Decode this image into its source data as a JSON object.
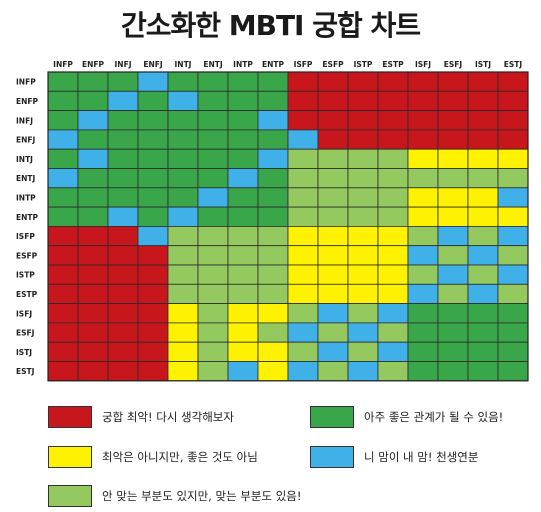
{
  "title": "간소화한 MBTI 궁합 차트",
  "chart_data": {
    "type": "heatmap",
    "x_categories": [
      "INFP",
      "ENFP",
      "INFJ",
      "ENFJ",
      "INTJ",
      "ENTJ",
      "INTP",
      "ENTP",
      "ISFP",
      "ESFP",
      "ISTP",
      "ESTP",
      "ISFJ",
      "ESFJ",
      "ISTJ",
      "ESTJ"
    ],
    "y_categories": [
      "INFP",
      "ENFP",
      "INFJ",
      "ENFJ",
      "INTJ",
      "ENTJ",
      "INTP",
      "ENTP",
      "ISFP",
      "ESFP",
      "ISTP",
      "ESTP",
      "ISFJ",
      "ESFJ",
      "ISTJ",
      "ESTJ"
    ],
    "matrix": [
      [
        "G",
        "G",
        "G",
        "B",
        "G",
        "G",
        "G",
        "G",
        "R",
        "R",
        "R",
        "R",
        "R",
        "R",
        "R",
        "R"
      ],
      [
        "G",
        "G",
        "B",
        "G",
        "B",
        "G",
        "G",
        "G",
        "R",
        "R",
        "R",
        "R",
        "R",
        "R",
        "R",
        "R"
      ],
      [
        "G",
        "B",
        "G",
        "G",
        "G",
        "G",
        "G",
        "B",
        "R",
        "R",
        "R",
        "R",
        "R",
        "R",
        "R",
        "R"
      ],
      [
        "B",
        "G",
        "G",
        "G",
        "G",
        "G",
        "G",
        "G",
        "B",
        "R",
        "R",
        "R",
        "R",
        "R",
        "R",
        "R"
      ],
      [
        "G",
        "B",
        "G",
        "G",
        "G",
        "G",
        "G",
        "B",
        "L",
        "L",
        "L",
        "L",
        "Y",
        "Y",
        "Y",
        "Y"
      ],
      [
        "B",
        "G",
        "G",
        "G",
        "G",
        "G",
        "B",
        "G",
        "L",
        "L",
        "L",
        "L",
        "L",
        "L",
        "L",
        "L"
      ],
      [
        "G",
        "G",
        "G",
        "G",
        "G",
        "B",
        "G",
        "G",
        "L",
        "L",
        "L",
        "L",
        "Y",
        "Y",
        "Y",
        "B"
      ],
      [
        "G",
        "G",
        "B",
        "G",
        "B",
        "G",
        "G",
        "G",
        "L",
        "L",
        "L",
        "L",
        "Y",
        "Y",
        "Y",
        "Y"
      ],
      [
        "R",
        "R",
        "R",
        "B",
        "L",
        "L",
        "L",
        "L",
        "Y",
        "Y",
        "Y",
        "Y",
        "L",
        "B",
        "L",
        "B"
      ],
      [
        "R",
        "R",
        "R",
        "R",
        "L",
        "L",
        "L",
        "L",
        "Y",
        "Y",
        "Y",
        "Y",
        "B",
        "L",
        "B",
        "L"
      ],
      [
        "R",
        "R",
        "R",
        "R",
        "L",
        "L",
        "L",
        "L",
        "Y",
        "Y",
        "Y",
        "Y",
        "L",
        "B",
        "L",
        "B"
      ],
      [
        "R",
        "R",
        "R",
        "R",
        "L",
        "L",
        "L",
        "L",
        "Y",
        "Y",
        "Y",
        "Y",
        "B",
        "L",
        "B",
        "L"
      ],
      [
        "R",
        "R",
        "R",
        "R",
        "Y",
        "L",
        "Y",
        "Y",
        "L",
        "B",
        "L",
        "B",
        "G",
        "G",
        "G",
        "G"
      ],
      [
        "R",
        "R",
        "R",
        "R",
        "Y",
        "L",
        "Y",
        "L",
        "B",
        "L",
        "B",
        "L",
        "G",
        "G",
        "G",
        "G"
      ],
      [
        "R",
        "R",
        "R",
        "R",
        "Y",
        "L",
        "Y",
        "Y",
        "L",
        "B",
        "L",
        "B",
        "G",
        "G",
        "G",
        "G"
      ],
      [
        "R",
        "R",
        "R",
        "R",
        "Y",
        "L",
        "B",
        "Y",
        "B",
        "L",
        "B",
        "L",
        "G",
        "G",
        "G",
        "G"
      ]
    ],
    "grid": true,
    "legend_position": "bottom",
    "legend": [
      {
        "code": "R",
        "color": "#c8161d",
        "label": "궁합 최악! 다시 생각해보자"
      },
      {
        "code": "G",
        "color": "#3aa64a",
        "label": "아주 좋은 관계가 될 수 있음!"
      },
      {
        "code": "Y",
        "color": "#fff200",
        "label": "최악은 아니지만, 좋은 것도 아님"
      },
      {
        "code": "B",
        "color": "#3fb0e8",
        "label": "니 맘이 내 맘! 천생연분"
      },
      {
        "code": "L",
        "color": "#93c95e",
        "label": "안 맞는 부분도 있지만, 맞는 부분도 있음!"
      }
    ]
  }
}
